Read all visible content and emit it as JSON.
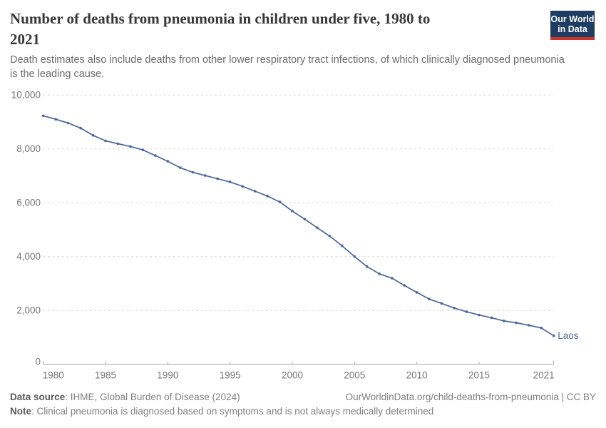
{
  "header": {
    "title_lines": [
      "Number of deaths from pneumonia in children under five, 1980 to",
      "2021"
    ],
    "subtitle_lines": [
      "Death estimates also include deaths from other lower respiratory tract infections, of which clinically diagnosed pneumonia",
      "is the leading cause."
    ],
    "logo": {
      "line1": "Our World",
      "line2": "in Data"
    }
  },
  "footer": {
    "source_label": "Data source",
    "source_rest": ": IHME, Global Burden of Disease (2024)",
    "credit": "OurWorldinData.org/child-deaths-from-pneumonia | CC BY",
    "note_label": "Note",
    "note_rest": ": Clinical pneumonia is diagnosed based on symptoms and is not always medically determined"
  },
  "colors": {
    "line": "#4a669b",
    "grid": "#dadada",
    "axis": "#a6a6a6",
    "tick_label": "#757575",
    "logo_bg": "#1d3d63",
    "logo_red": "#cb342b"
  },
  "chart_data": {
    "type": "line",
    "title": "Number of deaths from pneumonia in children under five, 1980 to 2021",
    "subtitle": "Death estimates also include deaths from other lower respiratory tract infections, of which clinically diagnosed pneumonia is the leading cause.",
    "xlabel": "",
    "ylabel": "",
    "xlim": [
      1980,
      2021
    ],
    "ylim": [
      0,
      10000
    ],
    "xticks": [
      1980,
      1985,
      1990,
      1995,
      2000,
      2005,
      2010,
      2015,
      2021
    ],
    "yticks": [
      0,
      2000,
      4000,
      6000,
      8000,
      10000
    ],
    "ytick_labels": [
      "0",
      "2,000",
      "4,000",
      "6,000",
      "8,000",
      "10,000"
    ],
    "grid": "horizontal-dashed",
    "legend": "end-of-line-label",
    "series": [
      {
        "name": "Laos",
        "end_label": "Laos",
        "x": [
          1980,
          1981,
          1982,
          1983,
          1984,
          1985,
          1986,
          1987,
          1988,
          1989,
          1990,
          1991,
          1992,
          1993,
          1994,
          1995,
          1996,
          1997,
          1998,
          1999,
          2000,
          2001,
          2002,
          2003,
          2004,
          2005,
          2006,
          2007,
          2008,
          2009,
          2010,
          2011,
          2012,
          2013,
          2014,
          2015,
          2016,
          2017,
          2018,
          2019,
          2020,
          2021
        ],
        "values": [
          9230,
          9100,
          8960,
          8770,
          8500,
          8300,
          8190,
          8090,
          7960,
          7750,
          7540,
          7300,
          7130,
          7010,
          6890,
          6770,
          6610,
          6430,
          6250,
          6030,
          5690,
          5390,
          5070,
          4760,
          4400,
          4000,
          3630,
          3360,
          3200,
          2930,
          2670,
          2420,
          2260,
          2090,
          1950,
          1830,
          1730,
          1610,
          1540,
          1450,
          1350,
          1060
        ]
      }
    ]
  }
}
